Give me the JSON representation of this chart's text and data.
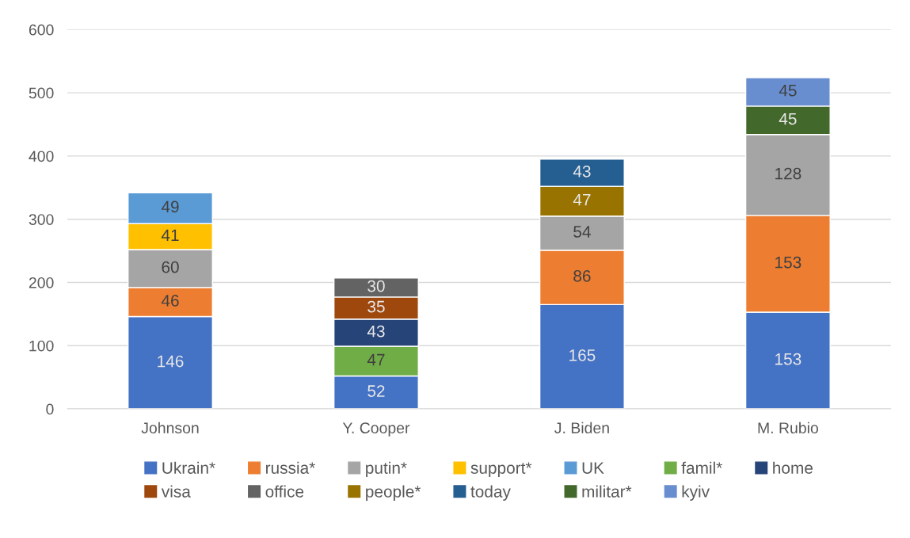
{
  "chart_data": {
    "type": "bar",
    "stacked": true,
    "data_labels": true,
    "grid": "y",
    "legend": "bottom",
    "categories": [
      "Johnson",
      "Y. Cooper",
      "J. Biden",
      "M. Rubio"
    ],
    "ylim": [
      0,
      600
    ],
    "yticks": [
      0,
      100,
      200,
      300,
      400,
      500,
      600
    ],
    "series": [
      {
        "name": "Ukrain*",
        "color": "#4472c4",
        "values": [
          146,
          52,
          165,
          153
        ]
      },
      {
        "name": "russia*",
        "color": "#ed7d31",
        "values": [
          46,
          null,
          86,
          153
        ]
      },
      {
        "name": "putin*",
        "color": "#a5a5a5",
        "values": [
          60,
          null,
          54,
          128
        ]
      },
      {
        "name": "support*",
        "color": "#ffc000",
        "values": [
          41,
          null,
          null,
          null
        ]
      },
      {
        "name": "UK",
        "color": "#5b9bd5",
        "values": [
          49,
          null,
          null,
          null
        ]
      },
      {
        "name": "famil*",
        "color": "#70ad47",
        "values": [
          null,
          47,
          null,
          null
        ]
      },
      {
        "name": "home",
        "color": "#264478",
        "values": [
          null,
          43,
          null,
          null
        ]
      },
      {
        "name": "visa",
        "color": "#9e480e",
        "values": [
          null,
          35,
          null,
          null
        ]
      },
      {
        "name": "office",
        "color": "#636363",
        "values": [
          null,
          30,
          null,
          null
        ]
      },
      {
        "name": "people*",
        "color": "#997300",
        "values": [
          null,
          null,
          47,
          null
        ]
      },
      {
        "name": "today",
        "color": "#255e91",
        "values": [
          null,
          null,
          43,
          null
        ]
      },
      {
        "name": "militar*",
        "color": "#43682b",
        "values": [
          null,
          null,
          null,
          45
        ]
      },
      {
        "name": "kyiv",
        "color": "#698ed0",
        "values": [
          null,
          null,
          null,
          45
        ]
      }
    ]
  }
}
